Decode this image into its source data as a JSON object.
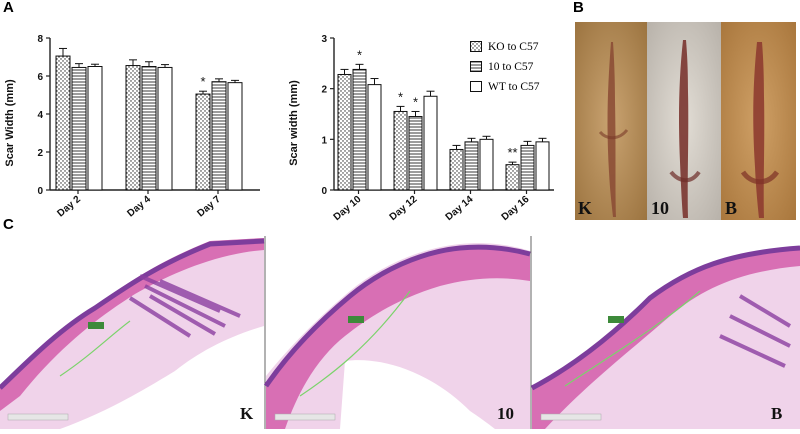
{
  "panels": {
    "a_letter": "A",
    "b_letter": "B",
    "c_letter": "C"
  },
  "legend": {
    "items": [
      {
        "name": "KO to C57",
        "pattern": "dots"
      },
      {
        "name": "10 to C57",
        "pattern": "hlines"
      },
      {
        "name": "WT to C57",
        "pattern": "plain"
      }
    ]
  },
  "chart_data": [
    {
      "type": "bar",
      "ylabel": "Scar Width (mm)",
      "xlabel": "",
      "ylim": [
        0,
        8
      ],
      "yticks": [
        0,
        2,
        4,
        6,
        8
      ],
      "categories": [
        "Day 2",
        "Day 4",
        "Day 7"
      ],
      "series": [
        {
          "name": "KO to C57",
          "values": [
            7.05,
            6.55,
            5.05
          ],
          "errors": [
            0.4,
            0.3,
            0.15
          ]
        },
        {
          "name": "10 to C57",
          "values": [
            6.45,
            6.5,
            5.7
          ],
          "errors": [
            0.2,
            0.25,
            0.15
          ]
        },
        {
          "name": "WT to C57",
          "values": [
            6.5,
            6.45,
            5.65
          ],
          "errors": [
            0.12,
            0.15,
            0.12
          ]
        }
      ],
      "annotations": [
        {
          "category": "Day 7",
          "series": 0,
          "text": "*"
        }
      ]
    },
    {
      "type": "bar",
      "ylabel": "Scar width (mm)",
      "xlabel": "",
      "ylim": [
        0,
        3
      ],
      "yticks": [
        0,
        1,
        2,
        3
      ],
      "categories": [
        "Day 10",
        "Day 12",
        "Day 14",
        "Day 16"
      ],
      "series": [
        {
          "name": "KO to C57",
          "values": [
            2.28,
            1.55,
            0.8,
            0.5
          ],
          "errors": [
            0.1,
            0.1,
            0.08,
            0.05
          ]
        },
        {
          "name": "10 to C57",
          "values": [
            2.38,
            1.45,
            0.95,
            0.88
          ],
          "errors": [
            0.1,
            0.1,
            0.07,
            0.08
          ]
        },
        {
          "name": "WT to C57",
          "values": [
            2.08,
            1.85,
            1.0,
            0.95
          ],
          "errors": [
            0.12,
            0.1,
            0.06,
            0.07
          ]
        }
      ],
      "annotations": [
        {
          "category": "Day 10",
          "series": 1,
          "text": "*"
        },
        {
          "category": "Day 12",
          "series": 0,
          "text": "*"
        },
        {
          "category": "Day 12",
          "series": 1,
          "text": "*"
        },
        {
          "category": "Day 16",
          "series": 0,
          "text": "**"
        }
      ]
    }
  ],
  "photos_b": {
    "labels": [
      "K",
      "10",
      "B"
    ]
  },
  "histology_c": {
    "labels": [
      "K",
      "10",
      "B"
    ]
  },
  "colors": {
    "he_pink": "#d86fb4",
    "he_purple": "#7d3d9c",
    "dermis_light": "#f0d3ea",
    "measure_green": "#7bd36b",
    "wound_tan": "#b98b4c",
    "wound_red": "#8b2e2a"
  }
}
